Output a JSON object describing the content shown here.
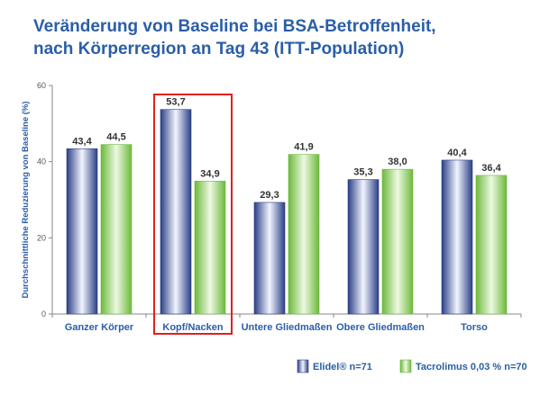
{
  "title_line1": "Veränderung von Baseline bei BSA-Betroffenheit,",
  "title_line2": "nach Körperregion an Tag 43 (ITT-Population)",
  "colors": {
    "title": "#2a5ea8",
    "axis_text": "#2a5ea8",
    "series1_dark": "#2b3f86",
    "series1_light": "#f2f5ff",
    "series2_dark": "#6cb93a",
    "series2_light": "#eef9e3",
    "highlight": "#e02020"
  },
  "chart_data": {
    "type": "bar",
    "title": "Veränderung von Baseline bei BSA-Betroffenheit, nach Körperregion an Tag 43 (ITT-Population)",
    "xlabel": "",
    "ylabel": "Durchschnittliche Reduzierung von Baseline (%)",
    "ylim": [
      0,
      60
    ],
    "yticks": [
      0,
      20,
      40,
      60
    ],
    "grid": false,
    "legend_position": "bottom-right",
    "highlighted_category": "Kopf/Nacken",
    "categories": [
      "Ganzer Körper",
      "Kopf/Nacken",
      "Untere Gliedmaßen",
      "Obere Gliedmaßen",
      "Torso"
    ],
    "series": [
      {
        "name": "Elidel® n=71",
        "values": [
          43.4,
          53.7,
          29.3,
          35.3,
          40.4
        ],
        "labels": [
          "43,4",
          "53,7",
          "29,3",
          "35,3",
          "40,4"
        ]
      },
      {
        "name": "Tacrolimus 0,03 % n=70",
        "values": [
          44.5,
          34.9,
          41.9,
          38.0,
          36.4
        ],
        "labels": [
          "44,5",
          "34,9",
          "41,9",
          "38,0",
          "36,4"
        ]
      }
    ]
  }
}
